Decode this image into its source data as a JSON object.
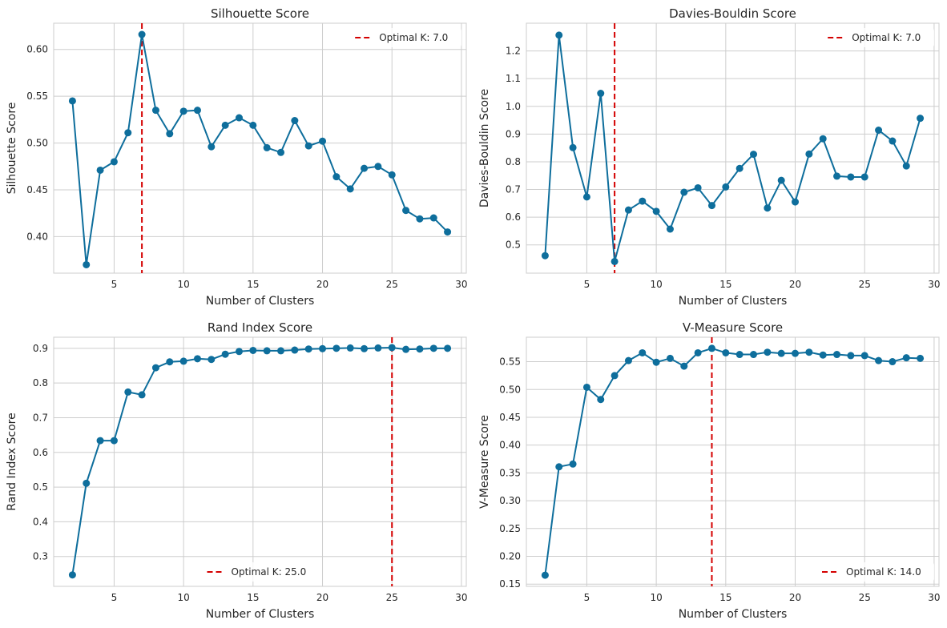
{
  "chart_data": [
    {
      "type": "line",
      "title": "Silhouette Score",
      "xlabel": "Number of Clusters",
      "ylabel": "Silhouette Score",
      "xlim": [
        0.65,
        30.35
      ],
      "ylim": [
        0.361,
        0.628
      ],
      "xticks": [
        5,
        10,
        15,
        20,
        25,
        30
      ],
      "yticks": [
        0.4,
        0.45,
        0.5,
        0.55,
        0.6
      ],
      "ytick_labels": [
        "0.40",
        "0.45",
        "0.50",
        "0.55",
        "0.60"
      ],
      "x": [
        2,
        3,
        4,
        5,
        6,
        7,
        8,
        9,
        10,
        11,
        12,
        13,
        14,
        15,
        16,
        17,
        18,
        19,
        20,
        21,
        22,
        23,
        24,
        25,
        26,
        27,
        28,
        29
      ],
      "series": [
        {
          "values": [
            0.545,
            0.37,
            0.471,
            0.48,
            0.511,
            0.616,
            0.535,
            0.51,
            0.534,
            0.535,
            0.496,
            0.519,
            0.527,
            0.519,
            0.495,
            0.49,
            0.524,
            0.497,
            0.502,
            0.464,
            0.451,
            0.473,
            0.475,
            0.466,
            0.428,
            0.419,
            0.42,
            0.405
          ]
        }
      ],
      "vline": {
        "x": 7.0,
        "label": "Optimal K: 7.0"
      },
      "legend": "upper-right",
      "grid": true
    },
    {
      "type": "line",
      "title": "Davies-Bouldin Score",
      "xlabel": "Number of Clusters",
      "ylabel": "Davies-Bouldin Score",
      "xlim": [
        0.65,
        30.35
      ],
      "ylim": [
        0.398,
        1.3
      ],
      "xticks": [
        5,
        10,
        15,
        20,
        25,
        30
      ],
      "yticks": [
        0.5,
        0.6,
        0.7,
        0.8,
        0.9,
        1.0,
        1.1,
        1.2
      ],
      "ytick_labels": [
        "0.5",
        "0.6",
        "0.7",
        "0.8",
        "0.9",
        "1.0",
        "1.1",
        "1.2"
      ],
      "x": [
        2,
        3,
        4,
        5,
        6,
        7,
        8,
        9,
        10,
        11,
        12,
        13,
        14,
        15,
        16,
        17,
        18,
        19,
        20,
        21,
        22,
        23,
        24,
        25,
        26,
        27,
        28,
        29
      ],
      "series": [
        {
          "values": [
            0.461,
            1.257,
            0.851,
            0.673,
            1.047,
            0.44,
            0.626,
            0.658,
            0.621,
            0.557,
            0.69,
            0.706,
            0.642,
            0.709,
            0.776,
            0.827,
            0.633,
            0.733,
            0.655,
            0.828,
            0.883,
            0.748,
            0.745,
            0.745,
            0.914,
            0.875,
            0.785,
            0.957
          ]
        }
      ],
      "vline": {
        "x": 7.0,
        "label": "Optimal K: 7.0"
      },
      "legend": "upper-right",
      "grid": true
    },
    {
      "type": "line",
      "title": "Rand Index Score",
      "xlabel": "Number of Clusters",
      "ylabel": "Rand Index Score",
      "xlim": [
        0.65,
        30.35
      ],
      "ylim": [
        0.214,
        0.932
      ],
      "xticks": [
        5,
        10,
        15,
        20,
        25,
        30
      ],
      "yticks": [
        0.3,
        0.4,
        0.5,
        0.6,
        0.7,
        0.8,
        0.9
      ],
      "ytick_labels": [
        "0.3",
        "0.4",
        "0.5",
        "0.6",
        "0.7",
        "0.8",
        "0.9"
      ],
      "x": [
        2,
        3,
        4,
        5,
        6,
        7,
        8,
        9,
        10,
        11,
        12,
        13,
        14,
        15,
        16,
        17,
        18,
        19,
        20,
        21,
        22,
        23,
        24,
        25,
        26,
        27,
        28,
        29
      ],
      "series": [
        {
          "values": [
            0.247,
            0.511,
            0.634,
            0.634,
            0.774,
            0.766,
            0.844,
            0.861,
            0.863,
            0.87,
            0.868,
            0.883,
            0.891,
            0.894,
            0.893,
            0.893,
            0.895,
            0.898,
            0.899,
            0.9,
            0.901,
            0.899,
            0.901,
            0.902,
            0.897,
            0.898,
            0.9,
            0.9
          ]
        }
      ],
      "vline": {
        "x": 25.0,
        "label": "Optimal K: 25.0"
      },
      "legend": "lower-center",
      "grid": true
    },
    {
      "type": "line",
      "title": "V-Measure Score",
      "xlabel": "Number of Clusters",
      "ylabel": "V-Measure Score",
      "xlim": [
        0.65,
        30.35
      ],
      "ylim": [
        0.146,
        0.594
      ],
      "xticks": [
        5,
        10,
        15,
        20,
        25,
        30
      ],
      "yticks": [
        0.15,
        0.2,
        0.25,
        0.3,
        0.35,
        0.4,
        0.45,
        0.5,
        0.55
      ],
      "ytick_labels": [
        "0.15",
        "0.20",
        "0.25",
        "0.30",
        "0.35",
        "0.40",
        "0.45",
        "0.50",
        "0.55"
      ],
      "x": [
        2,
        3,
        4,
        5,
        6,
        7,
        8,
        9,
        10,
        11,
        12,
        13,
        14,
        15,
        16,
        17,
        18,
        19,
        20,
        21,
        22,
        23,
        24,
        25,
        26,
        27,
        28,
        29
      ],
      "series": [
        {
          "values": [
            0.166,
            0.361,
            0.366,
            0.504,
            0.482,
            0.525,
            0.552,
            0.566,
            0.549,
            0.556,
            0.542,
            0.566,
            0.574,
            0.566,
            0.563,
            0.563,
            0.567,
            0.565,
            0.565,
            0.567,
            0.562,
            0.563,
            0.561,
            0.561,
            0.552,
            0.55,
            0.557,
            0.556
          ]
        }
      ],
      "vline": {
        "x": 14.0,
        "label": "Optimal K: 14.0"
      },
      "legend": "lower-right",
      "grid": true
    }
  ],
  "colors": {
    "line": "#0E6E9C",
    "marker": "#0E6E9C",
    "vline": "#D40000",
    "grid": "#CDCDCD",
    "spine": "#CDCDCD",
    "text": "#262626"
  }
}
